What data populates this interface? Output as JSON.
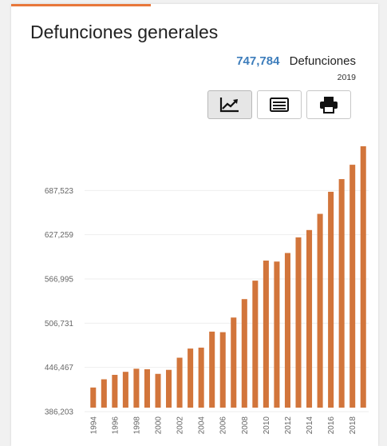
{
  "header": {
    "title": "Defunciones generales",
    "stat_value": "747,784",
    "stat_label": "Defunciones",
    "stat_year": "2019"
  },
  "toolbar": {
    "buttons": [
      {
        "icon": "line-chart-icon",
        "active": true
      },
      {
        "icon": "table-list-icon",
        "active": false
      },
      {
        "icon": "printer-icon",
        "active": false
      }
    ]
  },
  "colors": {
    "accent": "#e8773a",
    "bar": "#d2753b",
    "stat_value": "#3d7dbb"
  },
  "chart_data": {
    "type": "bar",
    "categories": [
      "1994",
      "1995",
      "1996",
      "1997",
      "1998",
      "1999",
      "2000",
      "2001",
      "2002",
      "2003",
      "2004",
      "2005",
      "2006",
      "2007",
      "2008",
      "2009",
      "2010",
      "2011",
      "2012",
      "2013",
      "2014",
      "2015",
      "2016",
      "2017",
      "2018",
      "2019"
    ],
    "x_tick_labels": [
      "1994",
      "1996",
      "1998",
      "2000",
      "2002",
      "2004",
      "2006",
      "2008",
      "2010",
      "2012",
      "2014",
      "2016",
      "2018"
    ],
    "values": [
      419074,
      430278,
      436321,
      440437,
      444665,
      443950,
      437667,
      443127,
      459687,
      472140,
      473417,
      495240,
      494471,
      514420,
      539530,
      564673,
      592018,
      590693,
      602354,
      623599,
      633641,
      655688,
      685766,
      703047,
      722611,
      747784
    ],
    "y_ticks": [
      386203,
      446467,
      506731,
      566995,
      627259,
      687523
    ],
    "y_tick_labels": [
      "386,203",
      "446,467",
      "506,731",
      "566,995",
      "627,259",
      "687,523"
    ],
    "ylim": [
      386203,
      747784
    ],
    "grid": true
  }
}
